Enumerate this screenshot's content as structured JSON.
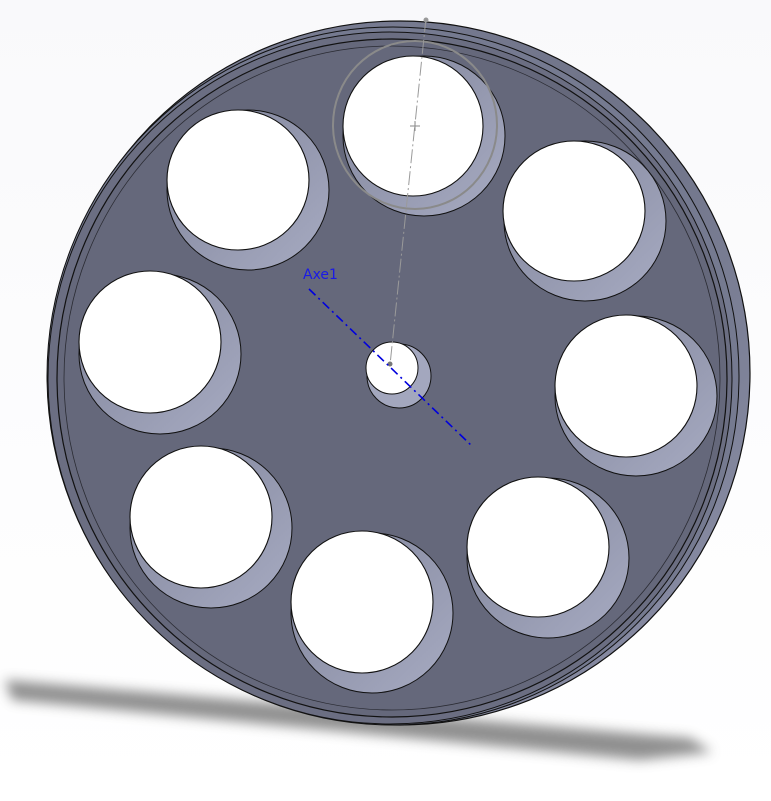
{
  "viewport": {
    "axis_label": "Axe1",
    "colors": {
      "background_top": "#fbfbfc",
      "background_bottom": "#ffffff",
      "body_face": "#6a6d80",
      "body_edge": "#8a8ea6",
      "hole_wall": "#9a9eb6",
      "outline": "#111111",
      "axis": "#0000dd",
      "sketch_line": "#888888"
    }
  }
}
